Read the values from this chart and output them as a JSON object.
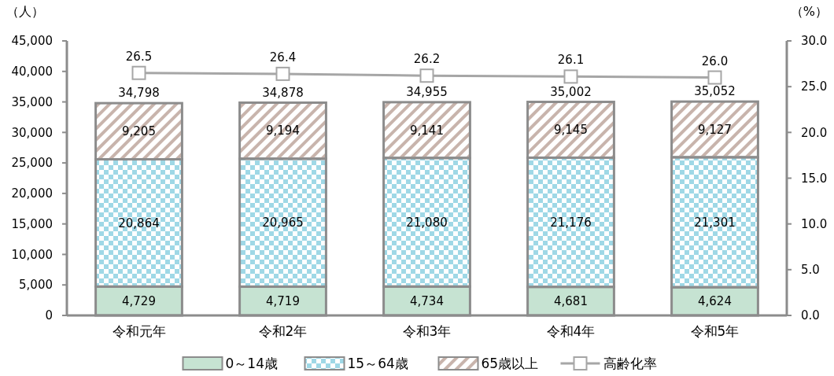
{
  "chart_data": {
    "type": "bar",
    "stacked": true,
    "ylabel": "（人）",
    "y2label": "（%）",
    "categories": [
      "令和元年",
      "令和2年",
      "令和3年",
      "令和4年",
      "令和5年"
    ],
    "series": [
      {
        "name": "0～14歳",
        "color": "#c6e3d2",
        "values": [
          4729,
          4719,
          4734,
          4681,
          4624
        ],
        "value_labels": [
          "4,729",
          "4,719",
          "4,734",
          "4,681",
          "4,624"
        ]
      },
      {
        "name": "15～64歳",
        "color": "#9fd8e6",
        "values": [
          20864,
          20965,
          21080,
          21176,
          21301
        ],
        "value_labels": [
          "20,864",
          "20,965",
          "21,080",
          "21,176",
          "21,301"
        ]
      },
      {
        "name": "65歳以上",
        "color": "#c8b4ac",
        "values": [
          9205,
          9194,
          9141,
          9145,
          9127
        ],
        "value_labels": [
          "9,205",
          "9,194",
          "9,141",
          "9,145",
          "9,127"
        ]
      },
      {
        "name": "高齢化率",
        "type": "line",
        "axis": "y2",
        "color": "#a6a6a6",
        "marker": "square",
        "values": [
          26.5,
          26.4,
          26.2,
          26.1,
          26.0
        ],
        "value_labels": [
          "26.5",
          "26.4",
          "26.2",
          "26.1",
          "26.0"
        ]
      }
    ],
    "totals": [
      "34,798",
      "34,878",
      "34,955",
      "35,002",
      "35,052"
    ],
    "data_labels": true,
    "ylim": [
      0,
      45000
    ],
    "yticks": [
      0,
      {
        "value": 5000,
        "label": "5,000"
      },
      {
        "value": 10000,
        "label": "10,000"
      },
      {
        "value": 15000,
        "label": "15,000"
      },
      {
        "value": 20000,
        "label": "20,000"
      },
      {
        "value": 25000,
        "label": "25,000"
      },
      {
        "value": 30000,
        "label": "30,000"
      },
      {
        "value": 35000,
        "label": "35,000"
      },
      {
        "value": 40000,
        "label": "40,000"
      },
      {
        "value": 45000,
        "label": "45,000"
      }
    ],
    "y2lim": [
      0,
      30
    ],
    "y2ticks": [
      {
        "value": 0,
        "label": "0.0"
      },
      {
        "value": 5,
        "label": "5.0"
      },
      {
        "value": 10,
        "label": "10.0"
      },
      {
        "value": 15,
        "label": "15.0"
      },
      {
        "value": 20,
        "label": "20.0"
      },
      {
        "value": 25,
        "label": "25.0"
      },
      {
        "value": 30,
        "label": "30.0"
      }
    ],
    "grid": false,
    "legend": "bottom"
  }
}
